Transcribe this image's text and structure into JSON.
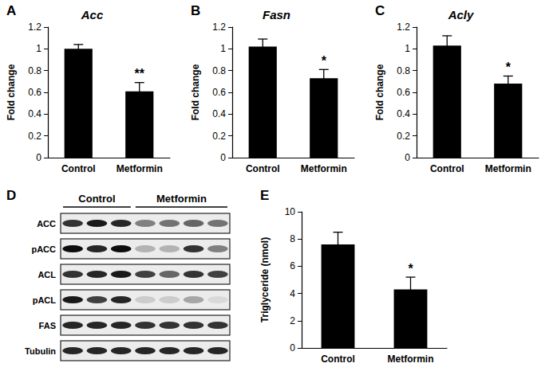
{
  "chart_data": [
    {
      "panel": "A",
      "type": "bar",
      "title": "Acc",
      "y_label": "Fold change",
      "categories": [
        "Control",
        "Metformin"
      ],
      "values": [
        1.0,
        0.61
      ],
      "errors": [
        0.04,
        0.08
      ],
      "color": "#000000",
      "ylim": [
        0,
        1.2
      ],
      "yticks": [
        0,
        0.2,
        0.4,
        0.6,
        0.8,
        1,
        1.2
      ],
      "grid": false,
      "annotations": [
        {
          "category": "Metformin",
          "text": "**"
        }
      ]
    },
    {
      "panel": "B",
      "type": "bar",
      "title": "Fasn",
      "y_label": "Fold change",
      "categories": [
        "Control",
        "Metformin"
      ],
      "values": [
        1.02,
        0.73
      ],
      "errors": [
        0.07,
        0.08
      ],
      "color": "#000000",
      "ylim": [
        0,
        1.2
      ],
      "yticks": [
        0,
        0.2,
        0.4,
        0.6,
        0.8,
        1,
        1.2
      ],
      "grid": false,
      "annotations": [
        {
          "category": "Metformin",
          "text": "*"
        }
      ]
    },
    {
      "panel": "C",
      "type": "bar",
      "title": "Acly",
      "y_label": "Fold change",
      "categories": [
        "Control",
        "Metformin"
      ],
      "values": [
        1.03,
        0.68
      ],
      "errors": [
        0.09,
        0.07
      ],
      "color": "#000000",
      "ylim": [
        0,
        1.2
      ],
      "yticks": [
        0,
        0.2,
        0.4,
        0.6,
        0.8,
        1,
        1.2
      ],
      "grid": false,
      "annotations": [
        {
          "category": "Metformin",
          "text": "*"
        }
      ]
    },
    {
      "panel": "E",
      "type": "bar",
      "y_label": "Triglyceride (nmol)",
      "categories": [
        "Control",
        "Metformin"
      ],
      "values": [
        7.6,
        4.3
      ],
      "errors": [
        0.9,
        0.9
      ],
      "color": "#000000",
      "ylim": [
        0,
        10
      ],
      "yticks": [
        0,
        2,
        4,
        6,
        8,
        10
      ],
      "grid": false,
      "annotations": [
        {
          "category": "Metformin",
          "text": "*"
        }
      ]
    }
  ],
  "blot": {
    "panel": "D",
    "groups": [
      {
        "label": "Control",
        "lanes": 3
      },
      {
        "label": "Metformin",
        "lanes": 4
      }
    ],
    "rows": [
      {
        "label": "ACC",
        "bands": [
          0.8,
          0.9,
          0.85,
          0.5,
          0.55,
          0.6,
          0.55
        ]
      },
      {
        "label": "pACC",
        "bands": [
          0.95,
          0.85,
          0.95,
          0.3,
          0.3,
          0.8,
          0.5
        ]
      },
      {
        "label": "ACL",
        "bands": [
          0.8,
          0.85,
          0.9,
          0.75,
          0.6,
          0.8,
          0.75
        ]
      },
      {
        "label": "pACL",
        "bands": [
          0.9,
          0.75,
          0.85,
          0.2,
          0.2,
          0.35,
          0.15
        ]
      },
      {
        "label": "FAS",
        "bands": [
          0.85,
          0.85,
          0.85,
          0.8,
          0.8,
          0.8,
          0.8
        ]
      },
      {
        "label": "Tubulin",
        "bands": [
          0.85,
          0.85,
          0.85,
          0.85,
          0.85,
          0.85,
          0.85
        ]
      }
    ]
  }
}
